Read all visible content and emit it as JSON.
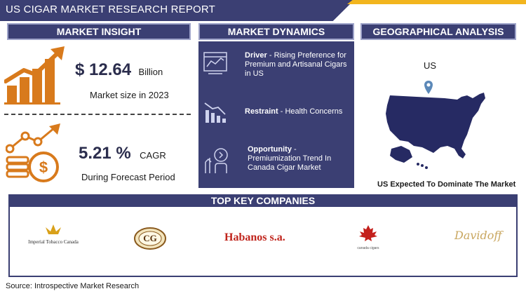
{
  "header": {
    "title": "US CIGAR MARKET RESEARCH REPORT"
  },
  "sections": {
    "insight": "MARKET INSIGHT",
    "dynamics": "MARKET DYNAMICS",
    "geo": "GEOGRAPHICAL ANALYSIS"
  },
  "insight": {
    "market_value": "$ 12.64",
    "market_unit": "Billion",
    "market_caption": "Market size in 2023",
    "cagr_value": "5.21 %",
    "cagr_unit": "CAGR",
    "cagr_caption": "During Forecast Period"
  },
  "dynamics": {
    "driver_label": "Driver",
    "driver_text": " - Rising Preference for Premium and Artisanal Cigars in US",
    "restraint_label": "Restraint",
    "restraint_text": " - Health Concerns",
    "opportunity_label": "Opportunity",
    "opportunity_text": " - Premiumization Trend In Canada Cigar Market"
  },
  "geo": {
    "country": "US",
    "caption": "US Expected To Dominate The Market"
  },
  "companies": {
    "title": "TOP KEY COMPANIES",
    "items": [
      "Imperial Tobacco Canada",
      "CG",
      "Habanos s.a.",
      "canada cigars",
      "Davidoff"
    ]
  },
  "footer": {
    "source": "Source: Introspective Market Research"
  },
  "colors": {
    "navy": "#3b3f73",
    "gold": "#f2b51e",
    "orange": "#d87a1c",
    "map": "#262a63"
  }
}
